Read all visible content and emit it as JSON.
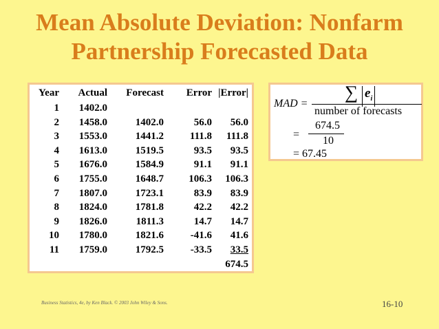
{
  "title": {
    "line1": "Mean Absolute Deviation:  Nonfarm",
    "line2": "Partnership Forecasted Data"
  },
  "table": {
    "headers": {
      "year": "Year",
      "actual": "Actual",
      "forecast": "Forecast",
      "error": "Error",
      "abs_error": "|Error|"
    },
    "rows": [
      {
        "year": "1",
        "actual": "1402.0",
        "forecast": "",
        "error": "",
        "abs_error": ""
      },
      {
        "year": "2",
        "actual": "1458.0",
        "forecast": "1402.0",
        "error": "56.0",
        "abs_error": "56.0"
      },
      {
        "year": "3",
        "actual": "1553.0",
        "forecast": "1441.2",
        "error": "111.8",
        "abs_error": "111.8"
      },
      {
        "year": "4",
        "actual": "1613.0",
        "forecast": "1519.5",
        "error": "93.5",
        "abs_error": "93.5"
      },
      {
        "year": "5",
        "actual": "1676.0",
        "forecast": "1584.9",
        "error": "91.1",
        "abs_error": "91.1"
      },
      {
        "year": "6",
        "actual": "1755.0",
        "forecast": "1648.7",
        "error": "106.3",
        "abs_error": "106.3"
      },
      {
        "year": "7",
        "actual": "1807.0",
        "forecast": "1723.1",
        "error": "83.9",
        "abs_error": "83.9"
      },
      {
        "year": "8",
        "actual": "1824.0",
        "forecast": "1781.8",
        "error": "42.2",
        "abs_error": "42.2"
      },
      {
        "year": "9",
        "actual": "1826.0",
        "forecast": "1811.3",
        "error": "14.7",
        "abs_error": "14.7"
      },
      {
        "year": "10",
        "actual": "1780.0",
        "forecast": "1821.6",
        "error": "-41.6",
        "abs_error": "41.6"
      },
      {
        "year": "11",
        "actual": "1759.0",
        "forecast": "1792.5",
        "error": "-33.5",
        "abs_error": "33.5"
      }
    ],
    "total": "674.5"
  },
  "formula": {
    "lhs": "MAD =",
    "sigma": "∑",
    "numerator_var": "e",
    "numerator_sub": "i",
    "denominator": "number of forecasts",
    "step1_numerator": "674.5",
    "step1_denominator": "10",
    "eq": "=",
    "result": "= 67.45"
  },
  "footer": "Business Statistics, 4e, by Ken Black. © 2003 John Wiley & Sons.",
  "page_number": "16-10",
  "colors": {
    "background": "#fdf68f",
    "title": "#d97d1c",
    "box_border": "#f5c890"
  }
}
